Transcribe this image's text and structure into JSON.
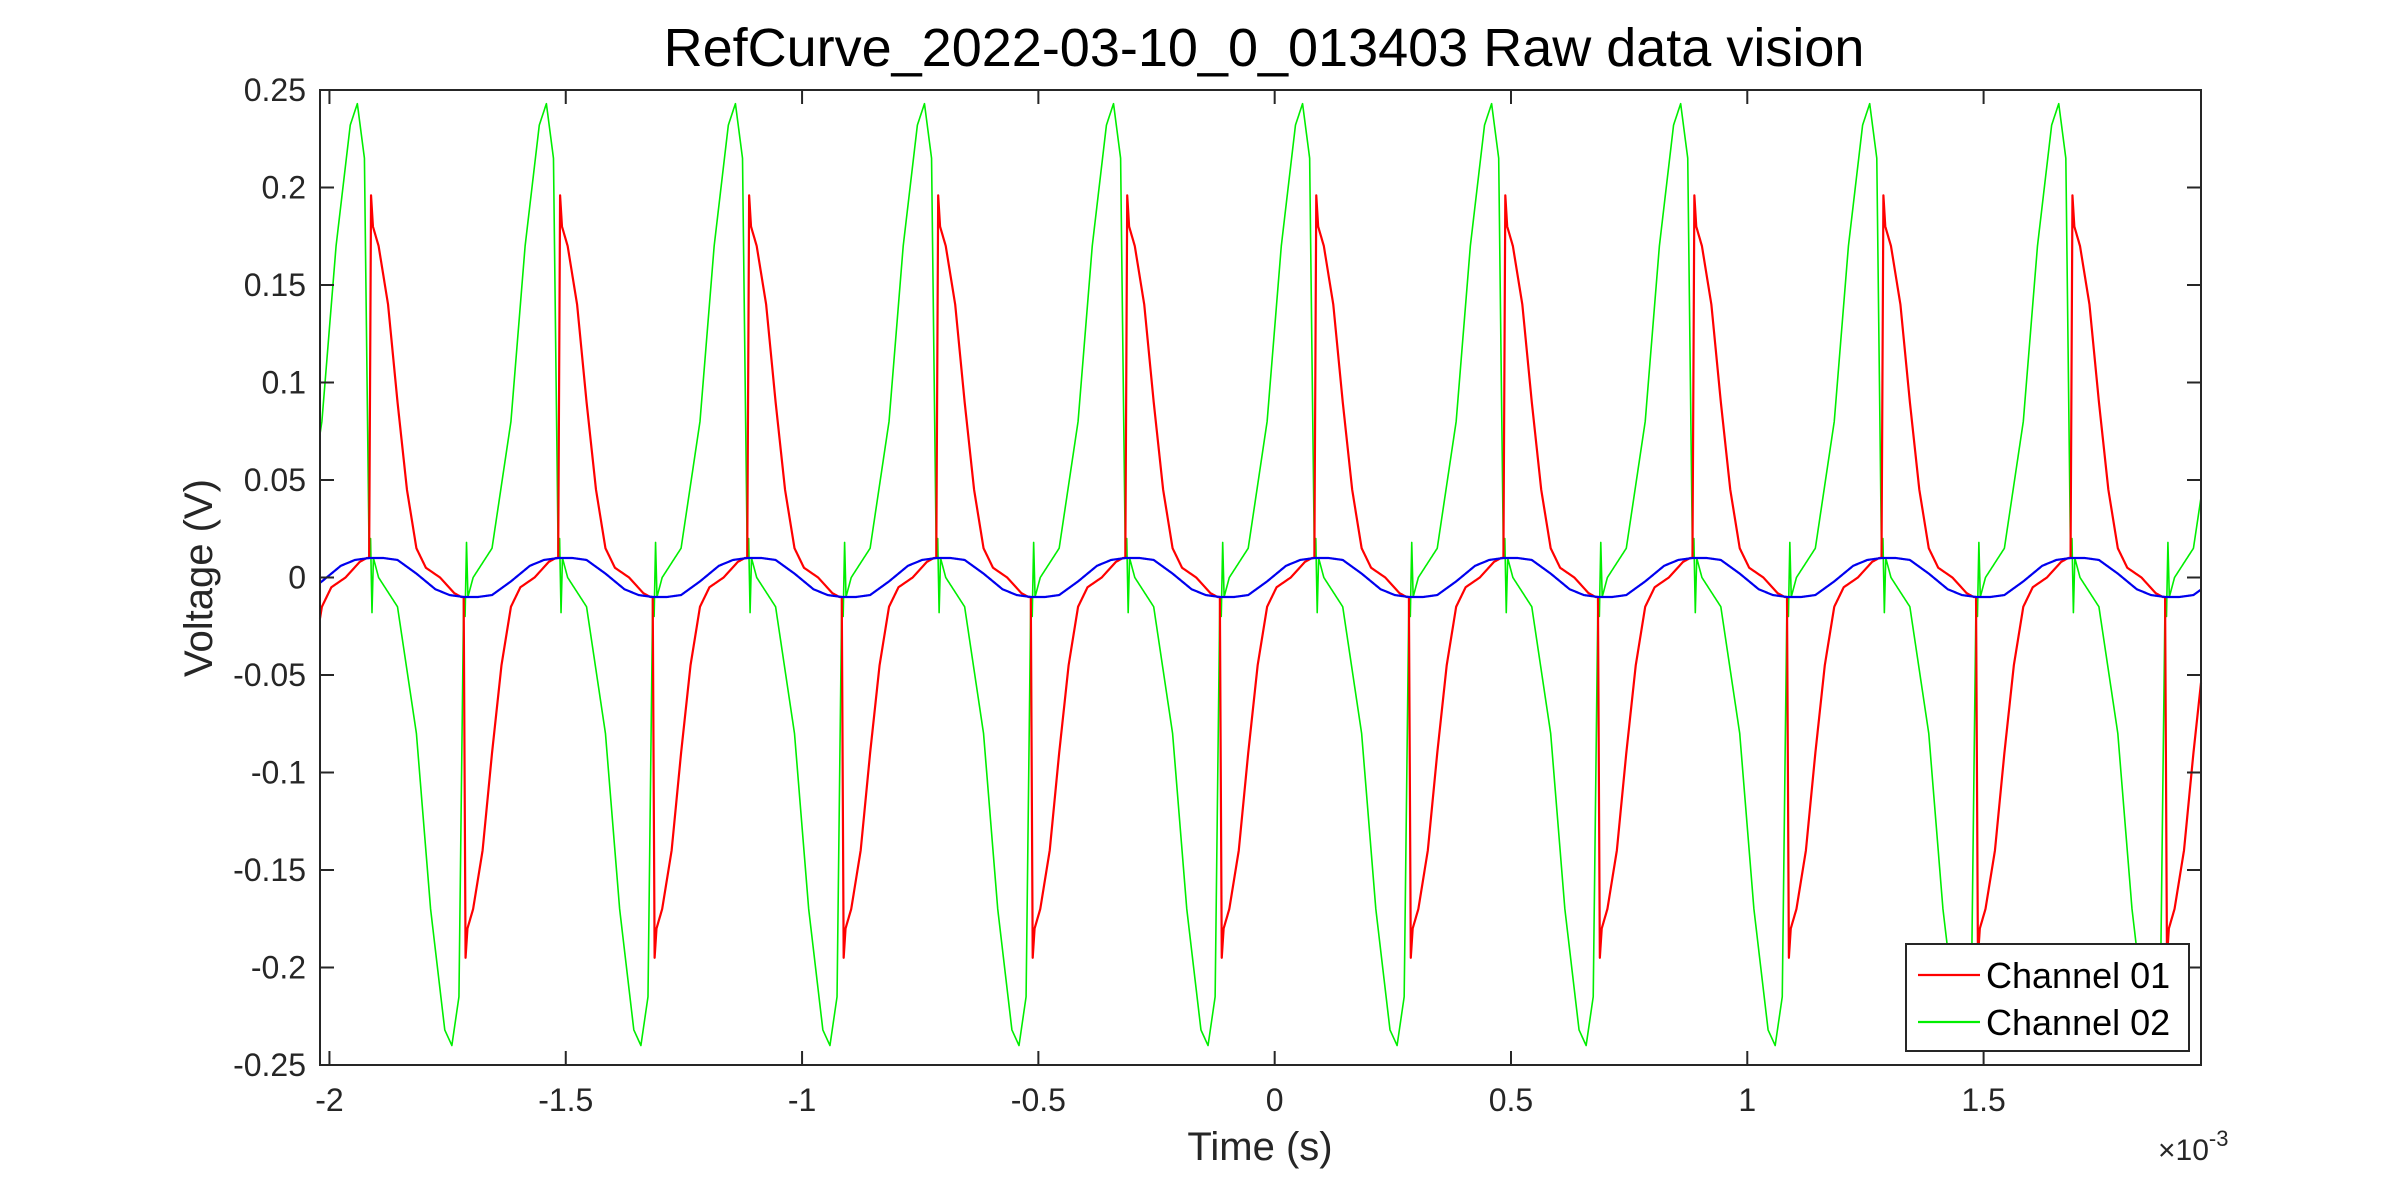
{
  "chart_data": {
    "type": "line",
    "title": "RefCurve_2022-03-10_0_013403 Raw data vision",
    "xlabel": "Time (s)",
    "ylabel": "Voltage (V)",
    "x_exponent_label": "×10",
    "x_exponent_power": "-3",
    "xlim": [
      -2.02,
      1.96
    ],
    "ylim": [
      -0.25,
      0.25
    ],
    "x_ticks": [
      -2,
      -1.5,
      -1,
      -0.5,
      0,
      0.5,
      1,
      1.5
    ],
    "x_tick_labels": [
      "-2",
      "-1.5",
      "-1",
      "-0.5",
      "0",
      "0.5",
      "1",
      "1.5"
    ],
    "y_ticks": [
      0.25,
      0.2,
      0.15,
      0.1,
      0.05,
      0,
      -0.05,
      -0.1,
      -0.15,
      -0.2,
      -0.25
    ],
    "y_tick_labels": [
      "0.25",
      "0.2",
      "0.15",
      "0.1",
      "0.05",
      "0",
      "-0.05",
      "-0.1",
      "-0.15",
      "-0.2",
      "-0.25"
    ],
    "grid": false,
    "legend_position": "bottom-right",
    "period": 0.4,
    "series": [
      {
        "name": "Channel 01",
        "color": "#ff0000",
        "legend": true,
        "waveform_keypoints": [
          [
            0.0,
            0.01
          ],
          [
            0.004,
            0.196
          ],
          [
            0.008,
            0.18
          ],
          [
            0.02,
            0.17
          ],
          [
            0.04,
            0.14
          ],
          [
            0.06,
            0.09
          ],
          [
            0.08,
            0.045
          ],
          [
            0.1,
            0.015
          ],
          [
            0.12,
            0.005
          ],
          [
            0.15,
            0.0
          ],
          [
            0.18,
            -0.008
          ],
          [
            0.195,
            -0.01
          ],
          [
            0.2,
            -0.01
          ],
          [
            0.204,
            -0.195
          ],
          [
            0.208,
            -0.18
          ],
          [
            0.22,
            -0.17
          ],
          [
            0.24,
            -0.14
          ],
          [
            0.26,
            -0.09
          ],
          [
            0.28,
            -0.045
          ],
          [
            0.3,
            -0.015
          ],
          [
            0.32,
            -0.005
          ],
          [
            0.35,
            0.0
          ],
          [
            0.38,
            0.008
          ],
          [
            0.395,
            0.01
          ],
          [
            0.4,
            0.01
          ]
        ],
        "phase_offset": -1.916
      },
      {
        "name": "Channel 02",
        "color": "#00ee00",
        "legend": true,
        "waveform_keypoints": [
          [
            0.0,
            0.01
          ],
          [
            0.003,
            0.02
          ],
          [
            0.006,
            -0.018
          ],
          [
            0.009,
            0.01
          ],
          [
            0.02,
            0.0
          ],
          [
            0.06,
            -0.015
          ],
          [
            0.1,
            -0.08
          ],
          [
            0.13,
            -0.17
          ],
          [
            0.16,
            -0.232
          ],
          [
            0.175,
            -0.24
          ],
          [
            0.19,
            -0.215
          ],
          [
            0.2,
            -0.01
          ],
          [
            0.203,
            -0.02
          ],
          [
            0.206,
            0.018
          ],
          [
            0.209,
            -0.01
          ],
          [
            0.22,
            0.0
          ],
          [
            0.26,
            0.015
          ],
          [
            0.3,
            0.08
          ],
          [
            0.33,
            0.17
          ],
          [
            0.36,
            0.232
          ],
          [
            0.375,
            0.243
          ],
          [
            0.39,
            0.215
          ],
          [
            0.4,
            0.01
          ]
        ],
        "phase_offset": -1.916
      },
      {
        "name": "",
        "color": "#0000ee",
        "legend": false,
        "waveform_keypoints": [
          [
            0.0,
            0.01
          ],
          [
            0.03,
            0.01
          ],
          [
            0.06,
            0.009
          ],
          [
            0.1,
            0.002
          ],
          [
            0.14,
            -0.006
          ],
          [
            0.17,
            -0.009
          ],
          [
            0.2,
            -0.01
          ],
          [
            0.23,
            -0.01
          ],
          [
            0.26,
            -0.009
          ],
          [
            0.3,
            -0.002
          ],
          [
            0.34,
            0.006
          ],
          [
            0.37,
            0.009
          ],
          [
            0.4,
            0.01
          ]
        ],
        "phase_offset": -1.916
      }
    ],
    "legend_entries": [
      "Channel 01",
      "Channel 02"
    ]
  }
}
